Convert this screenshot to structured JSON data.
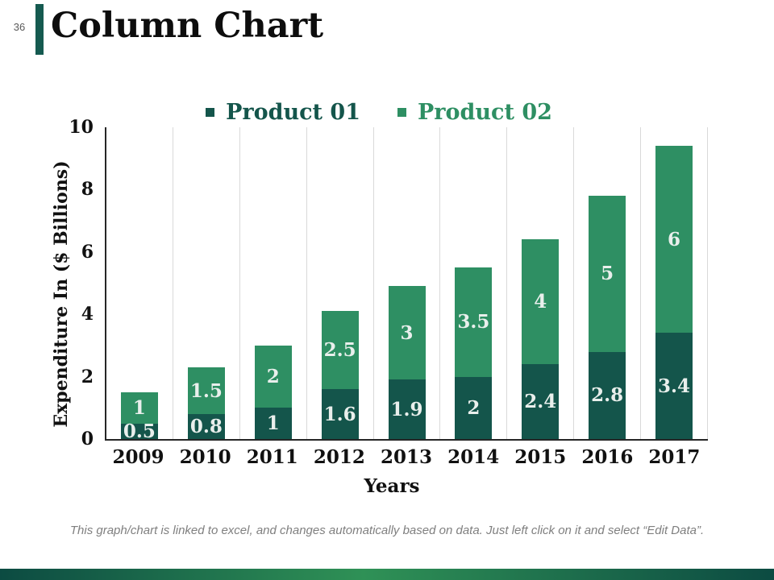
{
  "page": {
    "number": "36",
    "title": "Column Chart"
  },
  "chart_data": {
    "type": "bar",
    "stacked": true,
    "categories": [
      "2009",
      "2010",
      "2011",
      "2012",
      "2013",
      "2014",
      "2015",
      "2016",
      "2017"
    ],
    "series": [
      {
        "name": "Product 01",
        "color": "#14554b",
        "values": [
          0.5,
          0.8,
          1,
          1.6,
          1.9,
          2,
          2.4,
          2.8,
          3.4
        ]
      },
      {
        "name": "Product 02",
        "color": "#2e8f63",
        "values": [
          1,
          1.5,
          2,
          2.5,
          3,
          3.5,
          4,
          5,
          6
        ]
      }
    ],
    "xlabel": "Years",
    "ylabel": "Expenditure In ($ Billions)",
    "ylim": [
      0,
      10
    ],
    "yticks": [
      0,
      2,
      4,
      6,
      8,
      10
    ],
    "grid": "vertical-only",
    "legend_position": "top",
    "bar_label_color": "#e9efec"
  },
  "footer": {
    "note": "This graph/chart is linked to excel, and changes automatically based on data. Just left click on it and select “Edit Data”."
  },
  "colors": {
    "accent_bar": "#155a50",
    "axis_line": "#262626",
    "gridline": "#d9d9d9",
    "page_number_text": "#595959",
    "title_text": "#0d0d0d",
    "note_text": "#7f7f7f",
    "bottom_gradient": [
      "#0c4b42",
      "#2f9156",
      "#0c4b42"
    ]
  }
}
